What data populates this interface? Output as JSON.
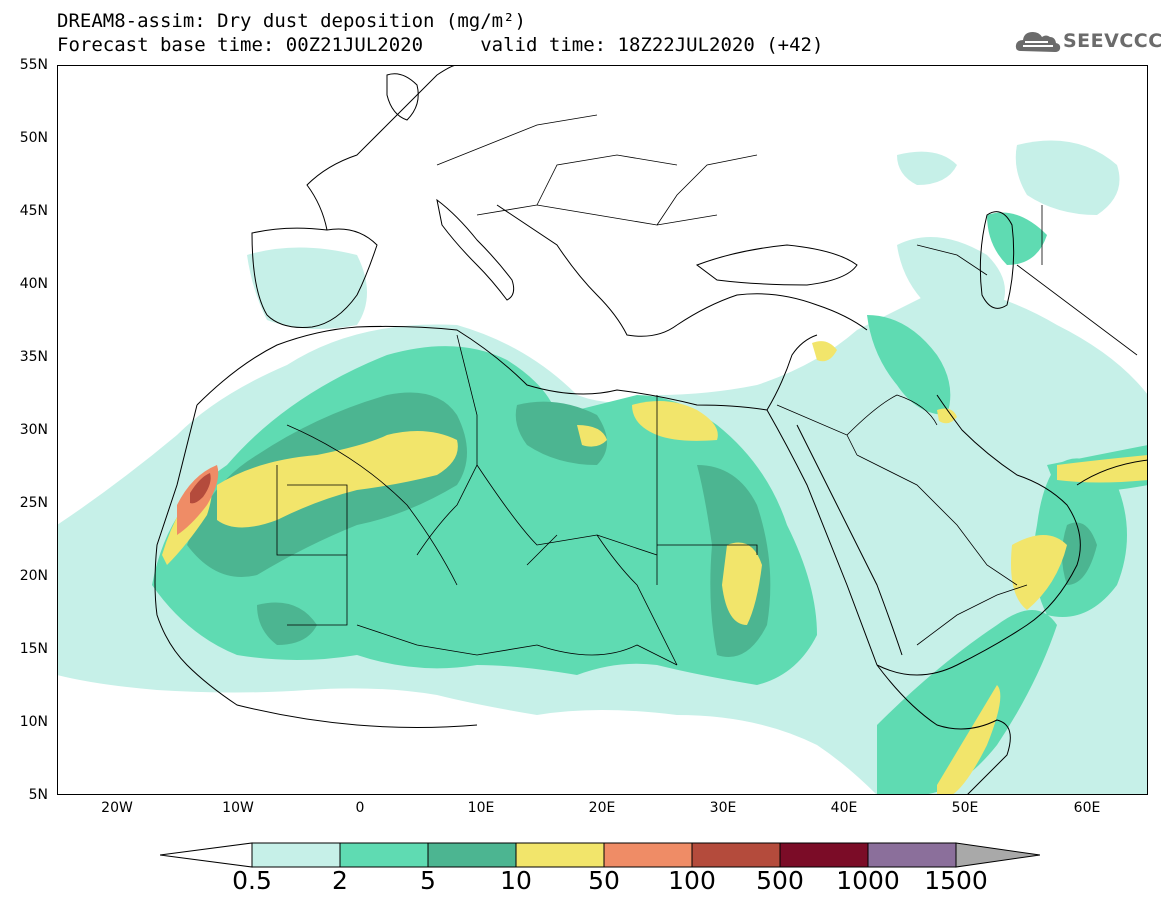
{
  "header": {
    "title_line1": "DREAM8-assim: Dry dust deposition (mg/m²)",
    "title_line2": "Forecast base time: 00Z21JUL2020     valid time: 18Z22JUL2020 (+42)",
    "logo_text": "SEEVCCC"
  },
  "map": {
    "lat_labels": [
      "55N",
      "50N",
      "45N",
      "40N",
      "35N",
      "30N",
      "25N",
      "20N",
      "15N",
      "10N",
      "5N"
    ],
    "lon_labels": [
      "20W",
      "10W",
      "0",
      "10E",
      "20E",
      "30E",
      "40E",
      "50E",
      "60E"
    ],
    "extent": {
      "lon_min": -25,
      "lon_max": 65,
      "lat_min": 5,
      "lat_max": 55
    }
  },
  "legend": {
    "thresholds": [
      "0.5",
      "2",
      "5",
      "10",
      "50",
      "100",
      "500",
      "1000",
      "1500"
    ],
    "colors": [
      "#c6f0e8",
      "#5fdbb2",
      "#4cb591",
      "#f2e56b",
      "#ef8c66",
      "#b44b3c",
      "#7b0c27",
      "#8b6f9b",
      "#a9a9a9"
    ],
    "under_color": "#ffffff",
    "over_color": "#a9a9a9"
  }
}
